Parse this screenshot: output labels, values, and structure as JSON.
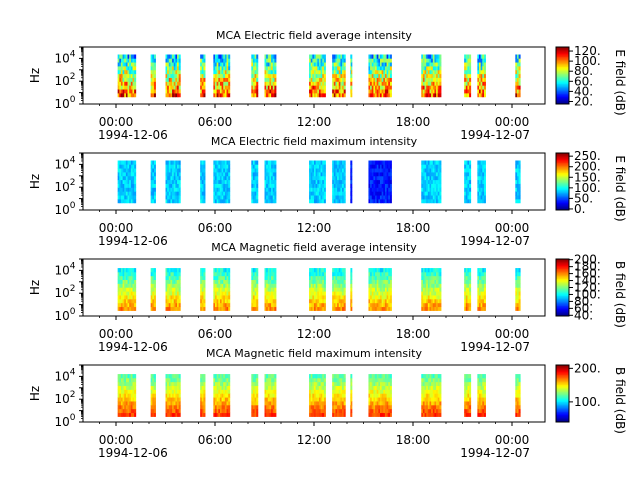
{
  "chart_data": [
    {
      "type": "heatmap",
      "title": "MCA  Electric field average intensity",
      "ylabel": "Hz",
      "yscale": "log",
      "ylim": [
        1,
        100000
      ],
      "y_ticks": [
        {
          "base": "10",
          "exp": "0"
        },
        {
          "base": "10",
          "exp": "2"
        },
        {
          "base": "10",
          "exp": "4"
        }
      ],
      "x_ticks": [
        "00:00",
        "06:00",
        "12:00",
        "18:00",
        "00:00"
      ],
      "x_dates": [
        "1994-12-06",
        "1994-12-07"
      ],
      "colorbar": {
        "label": "E field (dB)",
        "range": [
          15,
          128
        ],
        "ticks": [
          "120.",
          "100.",
          "80.",
          "60.",
          "40.",
          "20."
        ],
        "tick_values": [
          120,
          100,
          80,
          60,
          40,
          20
        ]
      },
      "field": "E",
      "stat": "avg"
    },
    {
      "type": "heatmap",
      "title": "MCA  Electric field maximum intensity",
      "ylabel": "Hz",
      "yscale": "log",
      "ylim": [
        1,
        100000
      ],
      "y_ticks": [
        {
          "base": "10",
          "exp": "0"
        },
        {
          "base": "10",
          "exp": "2"
        },
        {
          "base": "10",
          "exp": "4"
        }
      ],
      "x_ticks": [
        "00:00",
        "06:00",
        "12:00",
        "18:00",
        "00:00"
      ],
      "x_dates": [
        "1994-12-06",
        "1994-12-07"
      ],
      "colorbar": {
        "label": "E field (dB)",
        "range": [
          -5,
          265
        ],
        "ticks": [
          "250.",
          "200.",
          "150.",
          "100.",
          "50.",
          "0."
        ],
        "tick_values": [
          250,
          200,
          150,
          100,
          50,
          0
        ]
      },
      "field": "E",
      "stat": "max"
    },
    {
      "type": "heatmap",
      "title": "MCA  Magnetic field average intensity",
      "ylabel": "Hz",
      "yscale": "log",
      "ylim": [
        1,
        100000
      ],
      "y_ticks": [
        {
          "base": "10",
          "exp": "0"
        },
        {
          "base": "10",
          "exp": "2"
        },
        {
          "base": "10",
          "exp": "4"
        }
      ],
      "x_ticks": [
        "00:00",
        "06:00",
        "12:00",
        "18:00",
        "00:00"
      ],
      "x_dates": [
        "1994-12-06",
        "1994-12-07"
      ],
      "colorbar": {
        "label": "B field (dB)",
        "range": [
          38,
          202
        ],
        "ticks": [
          "200.",
          "180.",
          "160.",
          "140.",
          "120.",
          "100.",
          "80.",
          "60.",
          "40."
        ],
        "tick_values": [
          200,
          180,
          160,
          140,
          120,
          100,
          80,
          60,
          40
        ]
      },
      "field": "B",
      "stat": "avg"
    },
    {
      "type": "heatmap",
      "title": "MCA  Magnetic field maximum intensity",
      "ylabel": "Hz",
      "yscale": "log",
      "ylim": [
        1,
        100000
      ],
      "y_ticks": [
        {
          "base": "10",
          "exp": "0"
        },
        {
          "base": "10",
          "exp": "2"
        },
        {
          "base": "10",
          "exp": "4"
        }
      ],
      "x_ticks": [
        "00:00",
        "06:00",
        "12:00",
        "18:00",
        "00:00"
      ],
      "x_dates": [
        "1994-12-06",
        "1994-12-07"
      ],
      "colorbar": {
        "label": "B field (dB)",
        "range": [
          40,
          210
        ],
        "ticks": [
          "200.",
          "100."
        ],
        "tick_values": [
          200,
          100
        ]
      },
      "field": "B",
      "stat": "max"
    }
  ],
  "x_range_hours": [
    -2,
    26
  ],
  "x_tick_hours": [
    0,
    6,
    12,
    18,
    24
  ],
  "data_intervals_hours": [
    [
      0.1,
      1.2
    ],
    [
      2.1,
      2.4
    ],
    [
      3.0,
      3.9
    ],
    [
      5.1,
      5.4
    ],
    [
      5.9,
      6.9
    ],
    [
      8.2,
      8.6
    ],
    [
      9.0,
      9.7
    ],
    [
      11.7,
      12.7
    ],
    [
      13.1,
      13.9
    ],
    [
      14.2,
      14.3
    ],
    [
      15.3,
      16.7
    ],
    [
      18.5,
      19.7
    ],
    [
      21.1,
      21.5
    ],
    [
      21.9,
      22.4
    ],
    [
      24.2,
      24.5
    ]
  ]
}
